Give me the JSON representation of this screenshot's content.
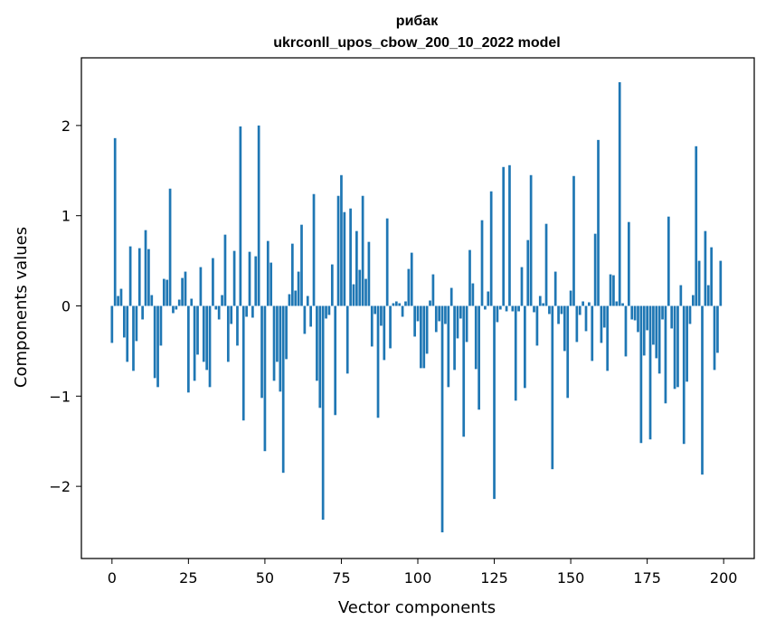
{
  "chart_data": {
    "type": "bar",
    "title": "рибак",
    "subtitle": "ukrconll_upos_cbow_200_10_2022 model",
    "xlabel": "Vector components",
    "ylabel": "Components values",
    "xlim": [
      -10,
      210
    ],
    "ylim": [
      -2.8,
      2.75
    ],
    "xticks": [
      0,
      25,
      50,
      75,
      100,
      125,
      150,
      175,
      200
    ],
    "yticks": [
      -2,
      -1,
      0,
      1,
      2
    ],
    "ytick_labels": [
      "−2",
      "−1",
      "0",
      "1",
      "2"
    ],
    "grid": false,
    "bar_color": "#1f77b4",
    "x": [
      0,
      1,
      2,
      3,
      4,
      5,
      6,
      7,
      8,
      9,
      10,
      11,
      12,
      13,
      14,
      15,
      16,
      17,
      18,
      19,
      20,
      21,
      22,
      23,
      24,
      25,
      26,
      27,
      28,
      29,
      30,
      31,
      32,
      33,
      34,
      35,
      36,
      37,
      38,
      39,
      40,
      41,
      42,
      43,
      44,
      45,
      46,
      47,
      48,
      49,
      50,
      51,
      52,
      53,
      54,
      55,
      56,
      57,
      58,
      59,
      60,
      61,
      62,
      63,
      64,
      65,
      66,
      67,
      68,
      69,
      70,
      71,
      72,
      73,
      74,
      75,
      76,
      77,
      78,
      79,
      80,
      81,
      82,
      83,
      84,
      85,
      86,
      87,
      88,
      89,
      90,
      91,
      92,
      93,
      94,
      95,
      96,
      97,
      98,
      99,
      100,
      101,
      102,
      103,
      104,
      105,
      106,
      107,
      108,
      109,
      110,
      111,
      112,
      113,
      114,
      115,
      116,
      117,
      118,
      119,
      120,
      121,
      122,
      123,
      124,
      125,
      126,
      127,
      128,
      129,
      130,
      131,
      132,
      133,
      134,
      135,
      136,
      137,
      138,
      139,
      140,
      141,
      142,
      143,
      144,
      145,
      146,
      147,
      148,
      149,
      150,
      151,
      152,
      153,
      154,
      155,
      156,
      157,
      158,
      159,
      160,
      161,
      162,
      163,
      164,
      165,
      166,
      167,
      168,
      169,
      170,
      171,
      172,
      173,
      174,
      175,
      176,
      177,
      178,
      179,
      180,
      181,
      182,
      183,
      184,
      185,
      186,
      187,
      188,
      189,
      190,
      191,
      192,
      193,
      194,
      195,
      196,
      197,
      198,
      199
    ],
    "values": [
      -0.41,
      1.86,
      0.11,
      0.19,
      -0.35,
      -0.62,
      0.66,
      -0.72,
      -0.39,
      0.64,
      -0.15,
      0.84,
      0.63,
      0.12,
      -0.8,
      -0.9,
      -0.44,
      0.3,
      0.29,
      1.3,
      -0.08,
      -0.04,
      0.07,
      0.31,
      0.38,
      -0.96,
      0.08,
      -0.83,
      -0.54,
      0.43,
      -0.62,
      -0.71,
      -0.9,
      0.53,
      -0.04,
      -0.15,
      0.12,
      0.79,
      -0.62,
      -0.2,
      0.61,
      -0.44,
      1.99,
      -1.27,
      -0.12,
      0.6,
      -0.13,
      0.55,
      2.0,
      -1.02,
      -1.61,
      0.72,
      0.48,
      -0.83,
      -0.62,
      -0.95,
      -1.85,
      -0.59,
      0.13,
      0.69,
      0.17,
      0.38,
      0.9,
      -0.31,
      0.11,
      -0.23,
      1.24,
      -0.83,
      -1.13,
      -2.37,
      -0.14,
      -0.1,
      0.46,
      -1.21,
      1.22,
      1.45,
      1.04,
      -0.75,
      1.08,
      0.24,
      0.83,
      0.4,
      1.22,
      0.3,
      0.71,
      -0.45,
      -0.09,
      -1.24,
      -0.22,
      -0.6,
      0.97,
      -0.47,
      0.03,
      0.05,
      0.03,
      -0.12,
      0.05,
      0.41,
      0.59,
      -0.34,
      -0.17,
      -0.69,
      -0.69,
      -0.53,
      0.06,
      0.35,
      -0.29,
      -0.17,
      -2.51,
      -0.2,
      -0.9,
      0.2,
      -0.71,
      -0.36,
      -0.14,
      -1.45,
      -0.4,
      0.62,
      0.25,
      -0.7,
      -1.15,
      0.95,
      -0.04,
      0.16,
      1.27,
      -2.14,
      -0.18,
      -0.04,
      1.54,
      -0.06,
      1.56,
      -0.06,
      -1.05,
      -0.06,
      0.43,
      -0.91,
      0.73,
      1.45,
      -0.07,
      -0.44,
      0.11,
      0.03,
      0.91,
      -0.09,
      -1.81,
      0.38,
      -0.2,
      -0.09,
      -0.5,
      -1.02,
      0.17,
      1.44,
      -0.4,
      -0.1,
      0.05,
      -0.28,
      0.04,
      -0.61,
      0.8,
      1.84,
      -0.41,
      -0.24,
      -0.72,
      0.35,
      0.34,
      0.05,
      2.48,
      0.03,
      -0.56,
      0.93,
      -0.15,
      -0.16,
      -0.29,
      -1.52,
      -0.55,
      -0.27,
      -1.48,
      -0.43,
      -0.58,
      -0.75,
      -0.15,
      -1.08,
      0.99,
      -0.25,
      -0.92,
      -0.9,
      0.23,
      -1.53,
      -0.84,
      -0.2,
      0.12,
      1.77,
      0.5,
      -1.87,
      0.83,
      0.23,
      0.65,
      -0.71,
      -0.52,
      0.5
    ]
  }
}
